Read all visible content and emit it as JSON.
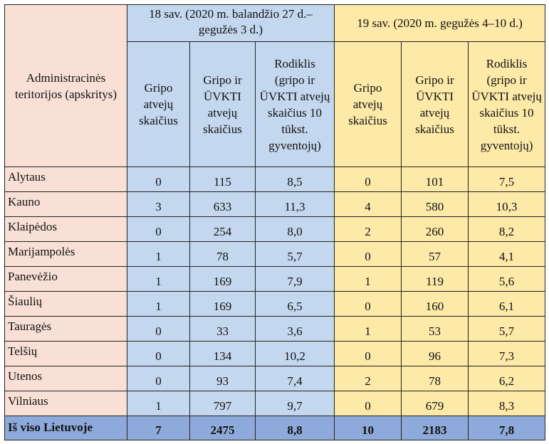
{
  "table": {
    "region_header": "Administracinės teritorijos (apskritys)",
    "week18": {
      "title": "18 sav. (2020 m. balandžio 27 d.– gegužės 3 d.)",
      "col_flu": "Gripo atvejų skaičius",
      "col_flu_ari": "Gripo ir ŪVKTI atvejų skaičius",
      "col_rate": "Rodiklis (gripo ir ŪVKTI atvejų skaičius 10 tūkst. gyventojų)"
    },
    "week19": {
      "title": "19 sav. (2020 m. gegužės 4–10 d.)",
      "col_flu": "Gripo atvejų skaičius",
      "col_flu_ari": "Gripo ir ŪVKTI atvejų skaičius",
      "col_rate": "Rodiklis (gripo ir ŪVKTI atvejų skaičius 10 tūkst. gyventojų)"
    },
    "rows": [
      {
        "region": "Alytaus",
        "w18_flu": "0",
        "w18_total": "115",
        "w18_rate": "8,5",
        "w19_flu": "0",
        "w19_total": "101",
        "w19_rate": "7,5"
      },
      {
        "region": "Kauno",
        "w18_flu": "3",
        "w18_total": "633",
        "w18_rate": "11,3",
        "w19_flu": "4",
        "w19_total": "580",
        "w19_rate": "10,3"
      },
      {
        "region": "Klaipėdos",
        "w18_flu": "0",
        "w18_total": "254",
        "w18_rate": "8,0",
        "w19_flu": "2",
        "w19_total": "260",
        "w19_rate": "8,2"
      },
      {
        "region": "Marijampolės",
        "w18_flu": "1",
        "w18_total": "78",
        "w18_rate": "5,7",
        "w19_flu": "0",
        "w19_total": "57",
        "w19_rate": "4,1"
      },
      {
        "region": "Panevėžio",
        "w18_flu": "1",
        "w18_total": "169",
        "w18_rate": "7,9",
        "w19_flu": "1",
        "w19_total": "119",
        "w19_rate": "5,6"
      },
      {
        "region": "Šiaulių",
        "w18_flu": "1",
        "w18_total": "169",
        "w18_rate": "6,5",
        "w19_flu": "0",
        "w19_total": "160",
        "w19_rate": "6,1"
      },
      {
        "region": "Tauragės",
        "w18_flu": "0",
        "w18_total": "33",
        "w18_rate": "3,6",
        "w19_flu": "1",
        "w19_total": "53",
        "w19_rate": "5,7"
      },
      {
        "region": "Telšių",
        "w18_flu": "0",
        "w18_total": "134",
        "w18_rate": "10,2",
        "w19_flu": "0",
        "w19_total": "96",
        "w19_rate": "7,3"
      },
      {
        "region": "Utenos",
        "w18_flu": "0",
        "w18_total": "93",
        "w18_rate": "7,4",
        "w19_flu": "2",
        "w19_total": "78",
        "w19_rate": "6,2"
      },
      {
        "region": "Vilniaus",
        "w18_flu": "1",
        "w18_total": "797",
        "w18_rate": "9,7",
        "w19_flu": "0",
        "w19_total": "679",
        "w19_rate": "8,3"
      }
    ],
    "total": {
      "region": "Iš viso Lietuvoje",
      "w18_flu": "7",
      "w18_total": "2475",
      "w18_rate": "8,8",
      "w19_flu": "10",
      "w19_total": "2183",
      "w19_rate": "7,8"
    }
  },
  "colors": {
    "region_bg": "#f9e0d6",
    "week18_bg": "#c3d8ee",
    "week19_bg": "#fde9a8",
    "total_bg": "#8eaadb"
  }
}
